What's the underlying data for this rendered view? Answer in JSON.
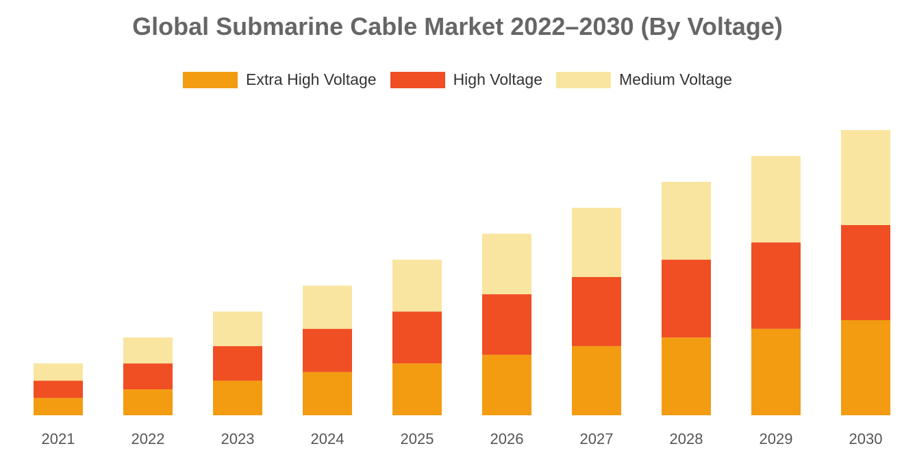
{
  "chart_data": {
    "type": "bar",
    "stacked": true,
    "title": "Global Submarine Cable Market 2022–2030 (By Voltage)",
    "xlabel": "",
    "ylabel": "",
    "categories": [
      "2021",
      "2022",
      "2023",
      "2024",
      "2025",
      "2026",
      "2027",
      "2028",
      "2029",
      "2030"
    ],
    "series": [
      {
        "name": "Extra High Voltage",
        "color": "#f39c12",
        "values": [
          2.0,
          3.0,
          4.0,
          5.0,
          6.0,
          7.0,
          8.0,
          9.0,
          10.0,
          11.0
        ]
      },
      {
        "name": "High Voltage",
        "color": "#f04e23",
        "values": [
          2.0,
          3.0,
          4.0,
          5.0,
          6.0,
          7.0,
          8.0,
          9.0,
          10.0,
          11.0
        ]
      },
      {
        "name": "Medium Voltage",
        "color": "#f9e5a0",
        "values": [
          2.0,
          3.0,
          4.0,
          5.0,
          6.0,
          7.0,
          8.0,
          9.0,
          10.0,
          11.0
        ]
      }
    ],
    "ylim": [
      0,
      33
    ],
    "grid": false,
    "legend_position": "top"
  }
}
